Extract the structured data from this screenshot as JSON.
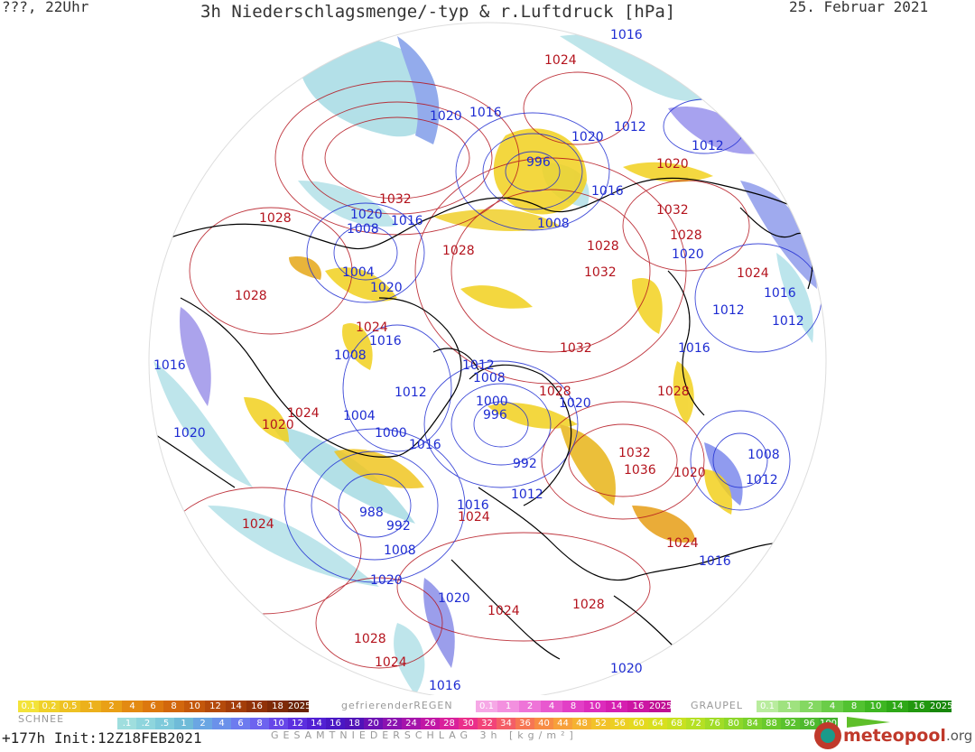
{
  "header": {
    "top_left": "???, 22Uhr",
    "title": "3h Niederschlagsmenge/-typ & r.Luftdruck [hPa]",
    "date": "25. Februar 2021"
  },
  "pressure_labels": [
    {
      "text": "1016",
      "c": "blue"
    },
    {
      "text": "1024",
      "c": "red"
    },
    {
      "text": "1020",
      "c": "blue"
    },
    {
      "text": "1016",
      "c": "blue"
    },
    {
      "text": "1020",
      "c": "blue"
    },
    {
      "text": "1012",
      "c": "blue"
    },
    {
      "text": "1012",
      "c": "blue"
    },
    {
      "text": "996",
      "c": "blue"
    },
    {
      "text": "1020",
      "c": "red"
    },
    {
      "text": "1032",
      "c": "red"
    },
    {
      "text": "1028",
      "c": "red"
    },
    {
      "text": "1020",
      "c": "blue"
    },
    {
      "text": "1016",
      "c": "blue"
    },
    {
      "text": "1008",
      "c": "blue"
    },
    {
      "text": "1016",
      "c": "blue"
    },
    {
      "text": "1008",
      "c": "blue"
    },
    {
      "text": "1032",
      "c": "red"
    },
    {
      "text": "1028",
      "c": "red"
    },
    {
      "text": "1028",
      "c": "red"
    },
    {
      "text": "1028",
      "c": "red"
    },
    {
      "text": "1020",
      "c": "blue"
    },
    {
      "text": "1004",
      "c": "blue"
    },
    {
      "text": "1032",
      "c": "red"
    },
    {
      "text": "1024",
      "c": "red"
    },
    {
      "text": "1020",
      "c": "blue"
    },
    {
      "text": "1028",
      "c": "red"
    },
    {
      "text": "1016",
      "c": "blue"
    },
    {
      "text": "1012",
      "c": "blue"
    },
    {
      "text": "1012",
      "c": "blue"
    },
    {
      "text": "1024",
      "c": "red"
    },
    {
      "text": "1016",
      "c": "blue"
    },
    {
      "text": "1016",
      "c": "blue"
    },
    {
      "text": "1008",
      "c": "blue"
    },
    {
      "text": "1032",
      "c": "red"
    },
    {
      "text": "1016",
      "c": "blue"
    },
    {
      "text": "1012",
      "c": "blue"
    },
    {
      "text": "1008",
      "c": "blue"
    },
    {
      "text": "1028",
      "c": "red"
    },
    {
      "text": "1028",
      "c": "red"
    },
    {
      "text": "1012",
      "c": "blue"
    },
    {
      "text": "1000",
      "c": "blue"
    },
    {
      "text": "1020",
      "c": "blue"
    },
    {
      "text": "1024",
      "c": "red"
    },
    {
      "text": "996",
      "c": "blue"
    },
    {
      "text": "1004",
      "c": "blue"
    },
    {
      "text": "1020",
      "c": "red"
    },
    {
      "text": "1020",
      "c": "blue"
    },
    {
      "text": "1000",
      "c": "blue"
    },
    {
      "text": "1016",
      "c": "blue"
    },
    {
      "text": "1032",
      "c": "red"
    },
    {
      "text": "1008",
      "c": "blue"
    },
    {
      "text": "992",
      "c": "blue"
    },
    {
      "text": "1036",
      "c": "red"
    },
    {
      "text": "1020",
      "c": "red"
    },
    {
      "text": "1012",
      "c": "blue"
    },
    {
      "text": "1012",
      "c": "blue"
    },
    {
      "text": "1016",
      "c": "blue"
    },
    {
      "text": "988",
      "c": "blue"
    },
    {
      "text": "1024",
      "c": "red"
    },
    {
      "text": "1024",
      "c": "red"
    },
    {
      "text": "992",
      "c": "blue"
    },
    {
      "text": "1024",
      "c": "red"
    },
    {
      "text": "1008",
      "c": "blue"
    },
    {
      "text": "1016",
      "c": "blue"
    },
    {
      "text": "1020",
      "c": "blue"
    },
    {
      "text": "1020",
      "c": "blue"
    },
    {
      "text": "1028",
      "c": "red"
    },
    {
      "text": "1024",
      "c": "red"
    },
    {
      "text": "1028",
      "c": "red"
    },
    {
      "text": "1024",
      "c": "red"
    },
    {
      "text": "1020",
      "c": "blue"
    },
    {
      "text": "1016",
      "c": "blue"
    }
  ],
  "legend": {
    "snow": {
      "title": "SCHNEE",
      "values": [
        "0.1",
        "0.2",
        "0.5",
        "1",
        "2",
        "4",
        "6",
        "8",
        "10",
        "12",
        "14",
        "16",
        "18",
        "2025+"
      ],
      "colors": [
        "#f3e33a",
        "#f0d12a",
        "#eec223",
        "#ecb11c",
        "#e9a016",
        "#e38a12",
        "#dc780f",
        "#d2670d",
        "#c4580b",
        "#b44a0a",
        "#a33d09",
        "#913208",
        "#7e2a07",
        "#6a2306"
      ]
    },
    "freezing_rain": {
      "title": "gefrierenderREGEN",
      "values": [
        "0.1",
        "1",
        "2",
        "4",
        "8",
        "10",
        "14",
        "16",
        "2025+"
      ],
      "colors": [
        "#f6a8e6",
        "#f390df",
        "#ee74d8",
        "#e859cf",
        "#e23fc6",
        "#dc2cbc",
        "#d51fb0",
        "#cc16a3",
        "#c00f94"
      ]
    },
    "graupel": {
      "title": "GRAUPEL",
      "values": [
        "0.1",
        "1",
        "2",
        "4",
        "8",
        "10",
        "14",
        "16",
        "2025+"
      ],
      "colors": [
        "#b9ec9e",
        "#9fe27f",
        "#84d862",
        "#6acd48",
        "#52c231",
        "#3eb622",
        "#2ea817",
        "#22980f",
        "#178708"
      ]
    },
    "total": {
      "title": "GESAMTNIEDERSCHLAG 3h [kg/m²]",
      "values": [
        ".1",
        ".2",
        ".5",
        "1",
        "2",
        "4",
        "6",
        "8",
        "10",
        "12",
        "14",
        "16",
        "18",
        "20",
        "22",
        "24",
        "26",
        "28",
        "30",
        "32",
        "34",
        "36",
        "40",
        "44",
        "48",
        "52",
        "56",
        "60",
        "64",
        "68",
        "72",
        "76",
        "80",
        "84",
        "88",
        "92",
        "96",
        "100"
      ],
      "colors": [
        "#9fdede",
        "#8ed5dd",
        "#7ecadb",
        "#6fbbd8",
        "#6aa6e3",
        "#6b91ea",
        "#6d7bef",
        "#6d63ef",
        "#6747e8",
        "#5c2fdf",
        "#5220d3",
        "#4a17c4",
        "#5113b8",
        "#6d12b4",
        "#8a13b0",
        "#a514ab",
        "#c116a5",
        "#d9209b",
        "#ea2f8a",
        "#f24478",
        "#f45e66",
        "#f67653",
        "#f78c44",
        "#f7a03a",
        "#f5b231",
        "#f2c229",
        "#eccf23",
        "#e4d920",
        "#d8df1f",
        "#c8e121",
        "#b5e024",
        "#a1dc27",
        "#8dd72a",
        "#7ad12c",
        "#69ca2d",
        "#5ac22e",
        "#4eb92e",
        "#43b02e"
      ]
    }
  },
  "footer": {
    "forecast": "+177h",
    "init": "Init:12Z18FEB2021"
  },
  "brand": {
    "name": "meteopool",
    "suffix": ".org"
  },
  "colors": {
    "isobar_high": "#b4141e",
    "isobar_low": "#1e2cd2",
    "coast": "#000000",
    "snow": "#f2d11e",
    "rain": "#8ccfe0"
  }
}
